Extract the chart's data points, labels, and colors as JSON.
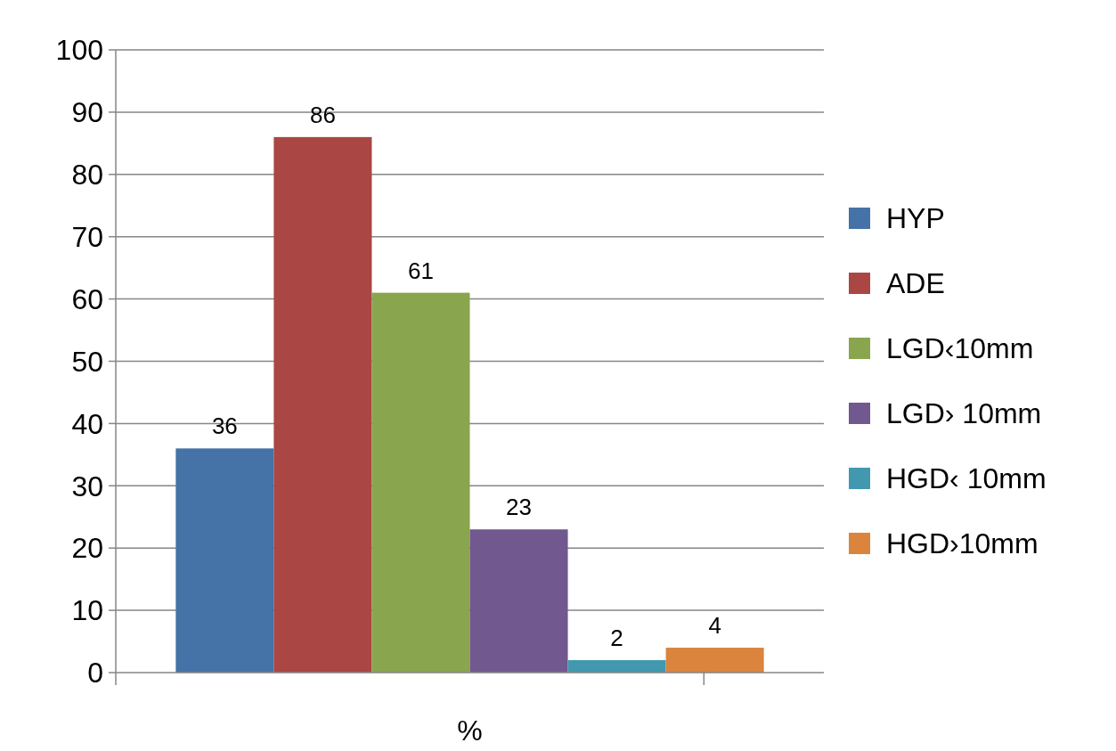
{
  "chart_data": {
    "type": "bar",
    "categories": [
      "%"
    ],
    "series": [
      {
        "name": "HYP",
        "color": "#4572a7",
        "values": [
          36
        ]
      },
      {
        "name": "ADE",
        "color": "#aa4643",
        "values": [
          86
        ]
      },
      {
        "name": "LGD‹10mm",
        "color": "#89a54e",
        "values": [
          61
        ]
      },
      {
        "name": "LGD› 10mm",
        "color": "#71588f",
        "values": [
          23
        ]
      },
      {
        "name": "HGD‹ 10mm",
        "color": "#4198af",
        "values": [
          2
        ]
      },
      {
        "name": "HGD›10mm",
        "color": "#db843d",
        "values": [
          4
        ]
      }
    ],
    "ylim": [
      0,
      100
    ],
    "yticks": [
      0,
      10,
      20,
      30,
      40,
      50,
      60,
      70,
      80,
      90,
      100
    ],
    "grid": "y",
    "legend": "right",
    "data_labels": true
  }
}
